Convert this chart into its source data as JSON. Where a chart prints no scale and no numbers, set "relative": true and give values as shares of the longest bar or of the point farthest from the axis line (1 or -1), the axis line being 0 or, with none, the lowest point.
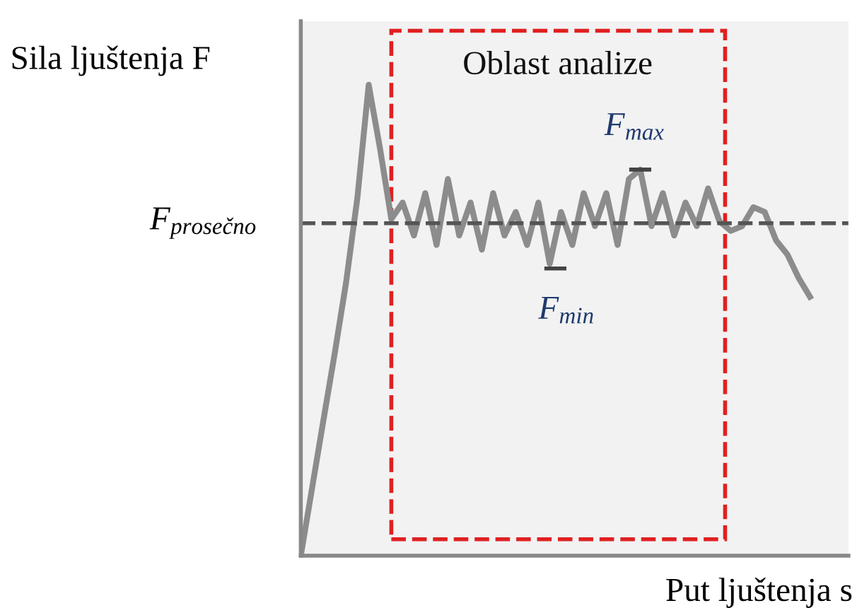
{
  "chart_data": {
    "type": "line",
    "relative": true,
    "xlabel": "Put ljuštenja s",
    "ylabel": "Sila ljuštenja F",
    "categories": [
      null,
      null,
      null,
      null,
      null,
      null,
      null,
      null,
      null,
      null,
      null,
      null,
      null,
      null,
      null,
      null,
      null,
      null,
      null,
      null,
      null,
      null,
      null,
      null,
      null,
      null,
      null,
      null,
      null,
      null,
      null,
      null,
      null,
      null,
      null,
      null,
      null,
      null,
      null,
      null,
      null,
      null,
      null,
      null,
      null,
      null
    ],
    "series": [
      {
        "color": "#8c8c8c",
        "values": [
          0,
          0.144,
          0.288,
          0.43,
          0.58,
          0.76,
          1.0,
          0.865,
          0.715,
          0.75,
          0.68,
          0.77,
          0.66,
          0.8,
          0.68,
          0.75,
          0.65,
          0.77,
          0.68,
          0.73,
          0.66,
          0.75,
          0.62,
          0.73,
          0.66,
          0.77,
          0.7,
          0.77,
          0.66,
          0.8,
          0.82,
          0.7,
          0.77,
          0.68,
          0.75,
          0.7,
          0.78,
          0.71,
          0.69,
          0.7,
          0.74,
          0.73,
          0.67,
          0.64,
          0.59,
          0.55
        ]
      }
    ],
    "ref_lines": [
      {
        "axis": "y",
        "value": 0.706,
        "label": "F$_{prosečno}$",
        "color": "#555555",
        "line_style": "dashed"
      }
    ],
    "annotations": [
      "Oblast analize",
      "F$_{max}$",
      "F$_{min}$"
    ],
    "marker": "none",
    "line_style": "solid",
    "grid": false,
    "legend": false
  }
}
